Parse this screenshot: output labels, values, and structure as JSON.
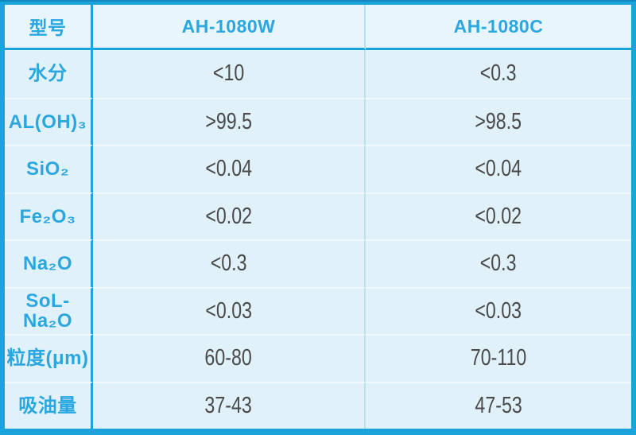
{
  "colors": {
    "frame": "#1BA3DC",
    "frame_top_edge": "#1287BF",
    "header_text": "#2AA7E0",
    "label_text": "#2AA7E0",
    "value_text": "#4A4A4A",
    "cell_bg": "#E0F1FA",
    "header_bg": "#E8F5FC",
    "light_divider": "#B7E0F1",
    "row_separator": "#F2F9FD"
  },
  "table": {
    "columns": [
      {
        "key": "label",
        "header": "型号"
      },
      {
        "key": "w",
        "header": "AH-1080W"
      },
      {
        "key": "c",
        "header": "AH-1080C"
      }
    ],
    "rows": [
      {
        "label": "水分",
        "w": "<10",
        "c": "<0.3"
      },
      {
        "label": "AL(OH)₃",
        "w": ">99.5",
        "c": ">98.5"
      },
      {
        "label": "SiO₂",
        "w": "<0.04",
        "c": "<0.04"
      },
      {
        "label": "Fe₂O₃",
        "w": "<0.02",
        "c": "<0.02"
      },
      {
        "label": "Na₂O",
        "w": "<0.3",
        "c": "<0.3"
      },
      {
        "label": "SoL-Na₂O",
        "w": "<0.03",
        "c": "<0.03"
      },
      {
        "label": "粒度(μm)",
        "w": "60-80",
        "c": "70-110"
      },
      {
        "label": "吸油量",
        "w": "37-43",
        "c": "47-53"
      }
    ]
  }
}
